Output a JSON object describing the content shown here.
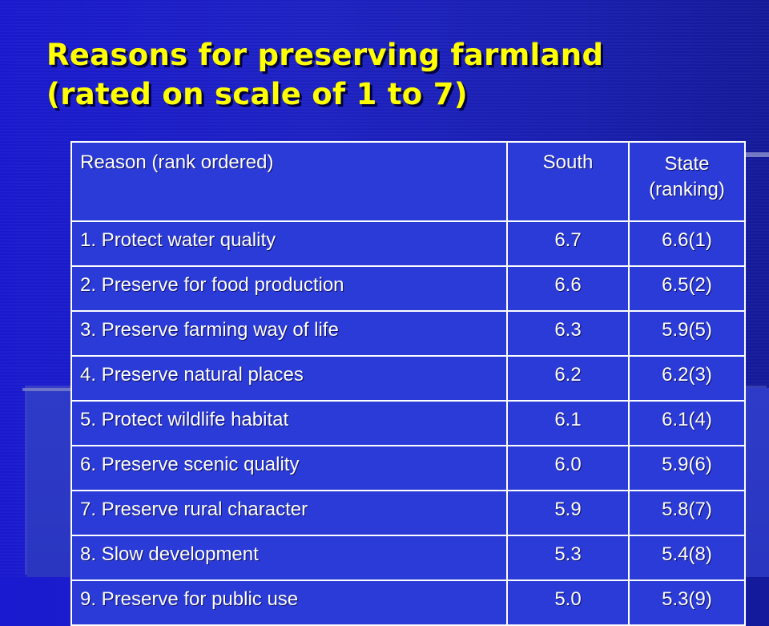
{
  "slide": {
    "title_line1": "Reasons for preserving farmland",
    "title_line2": "(rated on scale of 1 to 7)"
  },
  "table": {
    "headers": {
      "reason": "Reason (rank ordered)",
      "south": "South",
      "state_line1": "State",
      "state_line2": "(ranking)"
    },
    "rows": [
      {
        "reason": "1.  Protect water quality",
        "south": "6.7",
        "state": "6.6(1)"
      },
      {
        "reason": "2.  Preserve for food production",
        "south": "6.6",
        "state": "6.5(2)"
      },
      {
        "reason": "3.  Preserve farming way of life",
        "south": "6.3",
        "state": "5.9(5)"
      },
      {
        "reason": "4.  Preserve natural places",
        "south": "6.2",
        "state": "6.2(3)"
      },
      {
        "reason": "5.  Protect wildlife habitat",
        "south": "6.1",
        "state": "6.1(4)"
      },
      {
        "reason": "6.  Preserve scenic quality",
        "south": "6.0",
        "state": "5.9(6)"
      },
      {
        "reason": "7.  Preserve rural character",
        "south": "5.9",
        "state": "5.8(7)"
      },
      {
        "reason": "8.  Slow development",
        "south": "5.3",
        "state": "5.4(8)"
      },
      {
        "reason": "9.  Preserve for public use",
        "south": "5.0",
        "state": "5.3(9)"
      }
    ]
  },
  "colors": {
    "background": "#1e22c4",
    "title": "#ffff00",
    "table_fill": "#2a3bd8",
    "text": "#ffffff"
  }
}
